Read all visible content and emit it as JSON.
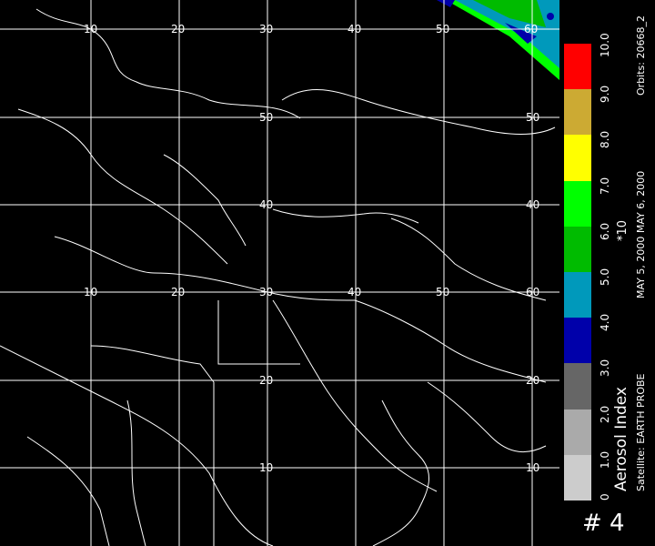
{
  "map": {
    "grid_lon_labels": [
      "10",
      "20",
      "30",
      "40",
      "50",
      "60"
    ],
    "grid_lat_labels": [
      "50",
      "40",
      "30",
      "20",
      "10"
    ]
  },
  "legend": {
    "title": "Aerosol Index",
    "multiplier": "*10",
    "satellite": "Satellite: EARTH PROBE",
    "dates": "MAY 5, 2000  MAY 6, 2000",
    "orbits": "Orbits: 20668_2",
    "page": "# 4",
    "ticks": [
      "0",
      "1.0",
      "2.0",
      "3.0",
      "4.0",
      "5.0",
      "6.0",
      "7.0",
      "8.0",
      "9.0",
      "10.0"
    ],
    "colors": [
      "#cccccc",
      "#aaaaaa",
      "#666666",
      "#0000aa",
      "#0099bb",
      "#00bb00",
      "#00ff00",
      "#ffff00",
      "#ccaa33",
      "#ff0000"
    ]
  }
}
